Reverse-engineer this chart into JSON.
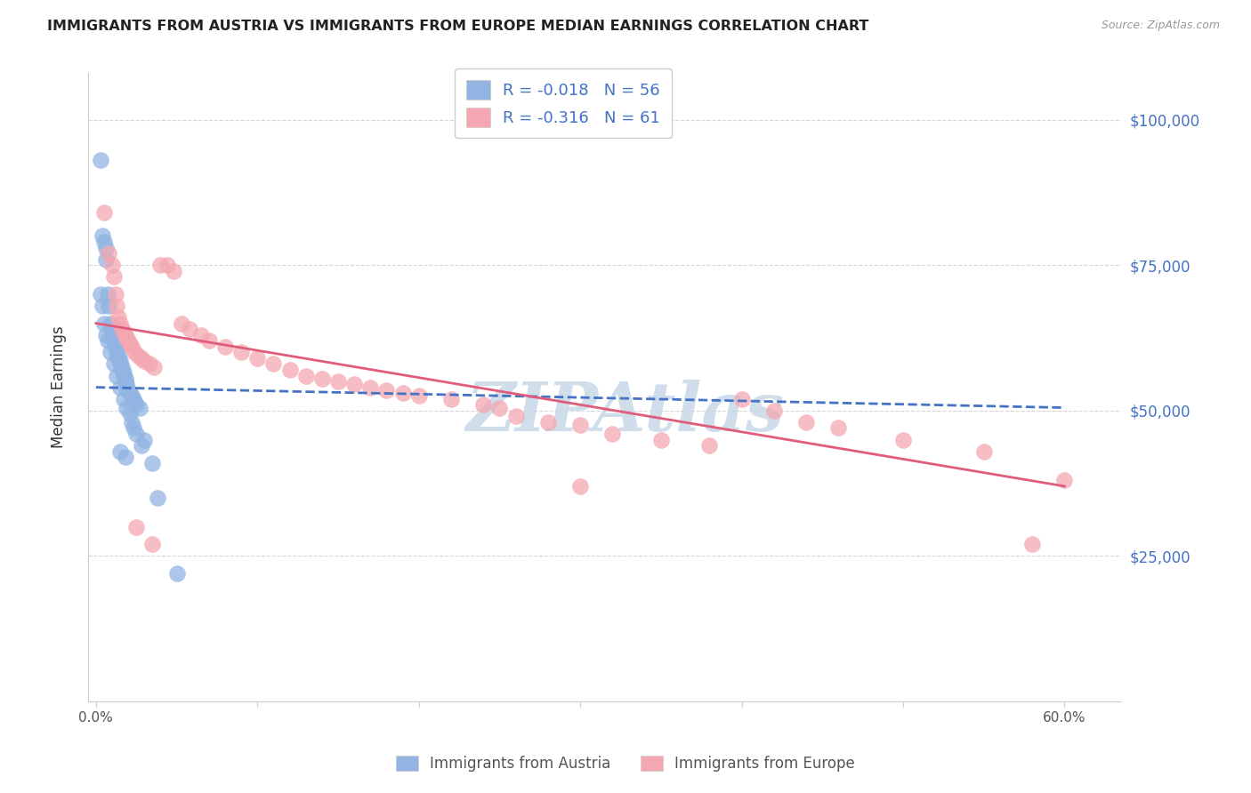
{
  "title": "IMMIGRANTS FROM AUSTRIA VS IMMIGRANTS FROM EUROPE MEDIAN EARNINGS CORRELATION CHART",
  "source": "Source: ZipAtlas.com",
  "xlabel_bottom": [
    "Immigrants from Austria",
    "Immigrants from Europe"
  ],
  "ylabel": "Median Earnings",
  "y_ticks": [
    0,
    25000,
    50000,
    75000,
    100000
  ],
  "y_tick_labels": [
    "",
    "$25,000",
    "$50,000",
    "$75,000",
    "$100,000"
  ],
  "xlim": [
    -0.005,
    0.635
  ],
  "ylim": [
    0,
    108000
  ],
  "austria_R": -0.018,
  "austria_N": 56,
  "europe_R": -0.316,
  "europe_N": 61,
  "austria_color": "#92b4e3",
  "europe_color": "#f4a7b0",
  "austria_line_color": "#4472c4",
  "europe_line_color": "#e05c7a",
  "watermark": "ZIPAtlas",
  "watermark_color": "#c8d8e8",
  "austria_line_x0": 0.0,
  "austria_line_x1": 0.6,
  "austria_line_y0": 54000,
  "austria_line_y1": 50500,
  "europe_line_x0": 0.0,
  "europe_line_x1": 0.6,
  "europe_line_y0": 65000,
  "europe_line_y1": 37000,
  "austria_x": [
    0.003,
    0.004,
    0.005,
    0.006,
    0.006,
    0.007,
    0.008,
    0.009,
    0.01,
    0.01,
    0.011,
    0.012,
    0.012,
    0.013,
    0.013,
    0.014,
    0.014,
    0.015,
    0.015,
    0.016,
    0.016,
    0.017,
    0.017,
    0.018,
    0.018,
    0.019,
    0.019,
    0.02,
    0.021,
    0.022,
    0.023,
    0.024,
    0.025,
    0.027,
    0.003,
    0.004,
    0.005,
    0.006,
    0.007,
    0.009,
    0.011,
    0.013,
    0.015,
    0.017,
    0.019,
    0.021,
    0.022,
    0.023,
    0.025,
    0.028,
    0.015,
    0.018,
    0.03,
    0.035,
    0.038,
    0.05
  ],
  "austria_y": [
    93000,
    80000,
    79000,
    78000,
    76000,
    70000,
    68000,
    65000,
    64000,
    63000,
    62000,
    61500,
    61000,
    60500,
    60000,
    59500,
    59000,
    58500,
    58000,
    57500,
    57000,
    56500,
    56000,
    55500,
    55000,
    54500,
    54000,
    53500,
    53000,
    52500,
    52000,
    51500,
    51000,
    50500,
    70000,
    68000,
    65000,
    63000,
    62000,
    60000,
    58000,
    56000,
    54000,
    52000,
    50500,
    49500,
    48000,
    47000,
    46000,
    44000,
    43000,
    42000,
    45000,
    41000,
    35000,
    22000
  ],
  "europe_x": [
    0.005,
    0.008,
    0.01,
    0.011,
    0.012,
    0.013,
    0.014,
    0.015,
    0.016,
    0.017,
    0.018,
    0.019,
    0.02,
    0.021,
    0.022,
    0.024,
    0.026,
    0.028,
    0.03,
    0.033,
    0.036,
    0.04,
    0.044,
    0.048,
    0.053,
    0.058,
    0.065,
    0.07,
    0.08,
    0.09,
    0.1,
    0.11,
    0.12,
    0.13,
    0.14,
    0.15,
    0.16,
    0.17,
    0.18,
    0.19,
    0.2,
    0.22,
    0.24,
    0.25,
    0.26,
    0.28,
    0.3,
    0.32,
    0.35,
    0.38,
    0.4,
    0.42,
    0.44,
    0.46,
    0.5,
    0.55,
    0.58,
    0.6,
    0.025,
    0.035,
    0.3
  ],
  "europe_y": [
    84000,
    77000,
    75000,
    73000,
    70000,
    68000,
    66000,
    65000,
    64000,
    63500,
    63000,
    62500,
    62000,
    61500,
    61000,
    60000,
    59500,
    59000,
    58500,
    58000,
    57500,
    75000,
    75000,
    74000,
    65000,
    64000,
    63000,
    62000,
    61000,
    60000,
    59000,
    58000,
    57000,
    56000,
    55500,
    55000,
    54500,
    54000,
    53500,
    53000,
    52500,
    52000,
    51000,
    50500,
    49000,
    48000,
    47500,
    46000,
    45000,
    44000,
    52000,
    50000,
    48000,
    47000,
    45000,
    43000,
    27000,
    38000,
    30000,
    27000,
    37000
  ]
}
